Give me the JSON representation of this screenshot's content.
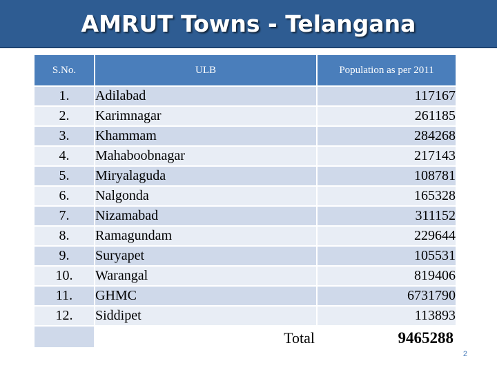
{
  "title": "AMRUT Towns - Telangana",
  "table": {
    "headers": {
      "sno": "S.No.",
      "ulb": "ULB",
      "population": "Population as per 2011"
    },
    "rows": [
      {
        "sno": "1.",
        "ulb": "Adilabad",
        "population": "117167"
      },
      {
        "sno": "2.",
        "ulb": "Karimnagar",
        "population": "261185"
      },
      {
        "sno": "3.",
        "ulb": "Khammam",
        "population": "284268"
      },
      {
        "sno": "4.",
        "ulb": "Mahaboobnagar",
        "population": "217143"
      },
      {
        "sno": "5.",
        "ulb": "Miryalaguda",
        "population": "108781"
      },
      {
        "sno": "6.",
        "ulb": "Nalgonda",
        "population": "165328"
      },
      {
        "sno": "7.",
        "ulb": "Nizamabad",
        "population": "311152"
      },
      {
        "sno": "8.",
        "ulb": "Ramagundam",
        "population": "229644"
      },
      {
        "sno": "9.",
        "ulb": "Suryapet",
        "population": "105531"
      },
      {
        "sno": "10.",
        "ulb": "Warangal",
        "population": "819406"
      },
      {
        "sno": "11.",
        "ulb": "GHMC",
        "population": "6731790"
      },
      {
        "sno": "12.",
        "ulb": "Siddipet",
        "population": "113893"
      }
    ],
    "total_label": "Total",
    "total_value": "9465288"
  },
  "page_number": "2",
  "colors": {
    "title_bar": "#2e5c92",
    "header": "#4a7ebb",
    "row_dark": "#cfd9ea",
    "row_light": "#e8edf5"
  }
}
